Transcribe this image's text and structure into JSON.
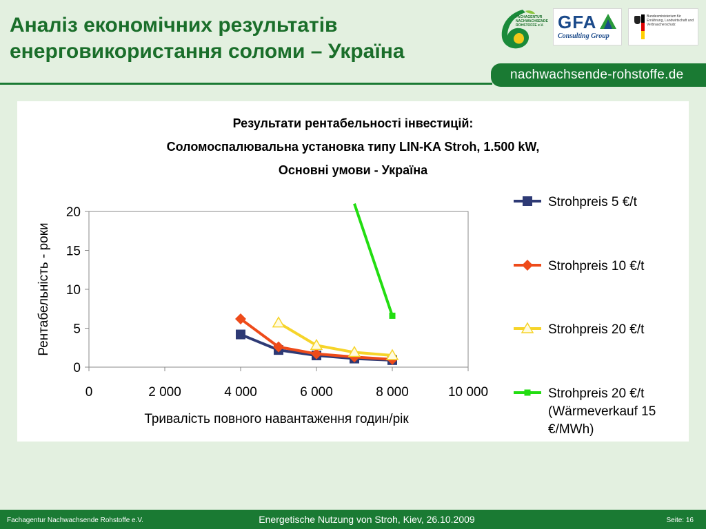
{
  "header": {
    "title_line1": "Аналіз економічних результатів",
    "title_line2": "енерговикористання соломи – Україна",
    "url": "nachwachsende-rohstoffe.de",
    "logos": {
      "fnr_text": "FACHAGENTUR NACHWACHSENDE ROHSTOFFE e.V.",
      "gfa": "GFA",
      "gfa_sub": "Consulting Group",
      "bmelv_text": "Bundesministerium für Ernährung, Landwirtschaft und Verbraucherschutz"
    }
  },
  "chart_data": {
    "type": "line",
    "title_lines": [
      "Результати рентабельності інвестицій:",
      "Соломоспалювальна установка типу LIN-KA Stroh, 1.500 kW,",
      "Основні умови - Україна"
    ],
    "xlabel": "Тривалість повного навантаження годин/рік",
    "ylabel": "Рентабельність - роки",
    "xlim": [
      0,
      10000
    ],
    "ylim": [
      0,
      20
    ],
    "x_ticks": [
      0,
      2000,
      4000,
      6000,
      8000,
      10000
    ],
    "x_tick_labels": [
      "0",
      "2 000",
      "4 000",
      "6 000",
      "8 000",
      "10 000"
    ],
    "y_ticks": [
      0,
      5,
      10,
      15,
      20
    ],
    "y_tick_labels": [
      "0",
      "5",
      "10",
      "15",
      "20"
    ],
    "grid": false,
    "legend_position": "right",
    "series": [
      {
        "name": "Strohpreis 5 €/t",
        "color": "#2e3a75",
        "marker": "square",
        "x": [
          4000,
          5000,
          6000,
          7000,
          8000
        ],
        "y": [
          4.2,
          2.2,
          1.5,
          1.1,
          0.9
        ]
      },
      {
        "name": "Strohpreis 10 €/t",
        "color": "#ee4b1a",
        "marker": "diamond",
        "x": [
          4000,
          5000,
          6000,
          7000,
          8000
        ],
        "y": [
          6.2,
          2.6,
          1.7,
          1.3,
          1.0
        ]
      },
      {
        "name": "Strohpreis 20 €/t",
        "color": "#f6d42a",
        "marker": "triangle",
        "x": [
          5000,
          6000,
          7000,
          8000
        ],
        "y": [
          5.7,
          2.8,
          1.9,
          1.5
        ]
      },
      {
        "name": "Strohpreis 20 €/t",
        "name_lines": [
          "Strohpreis 20 €/t",
          "(Wärmeverkauf 15",
          "€/MWh)"
        ],
        "color": "#22dd11",
        "marker": "small-square",
        "x": [
          7000,
          8000
        ],
        "y": [
          21.0,
          6.6
        ]
      }
    ]
  },
  "footer": {
    "left": "Fachagentur Nachwachsende Rohstoffe e.V.",
    "center": "Energetische Nutzung von Stroh, Kiev, 26.10.2009",
    "right": "Seite: 16"
  }
}
